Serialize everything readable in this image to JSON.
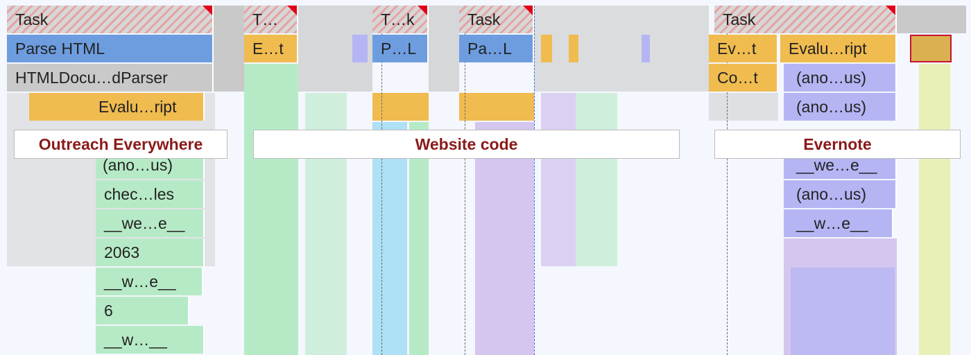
{
  "rows": [
    [
      "Task",
      "T…",
      "T…k",
      "Task",
      "Task"
    ],
    [
      "Parse HTML",
      "E…t",
      "P…L",
      "Pa…L",
      "Ev…t",
      "Evalu…ript"
    ],
    [
      "HTMLDocu…dParser",
      "Co…t",
      "(ano…us)"
    ],
    [
      "Evalu…ript",
      "(ano…us)"
    ],
    [
      "(ano…us)",
      "__we…e__"
    ],
    [
      "chec…les",
      "(ano…us)"
    ],
    [
      "__we…e__",
      "__w…e__"
    ],
    [
      "2063"
    ],
    [
      "__w…e__"
    ],
    [
      "6"
    ],
    [
      "__w…__"
    ]
  ],
  "annotations": [
    "Outreach Everywhere",
    "Website code",
    "Evernote"
  ]
}
